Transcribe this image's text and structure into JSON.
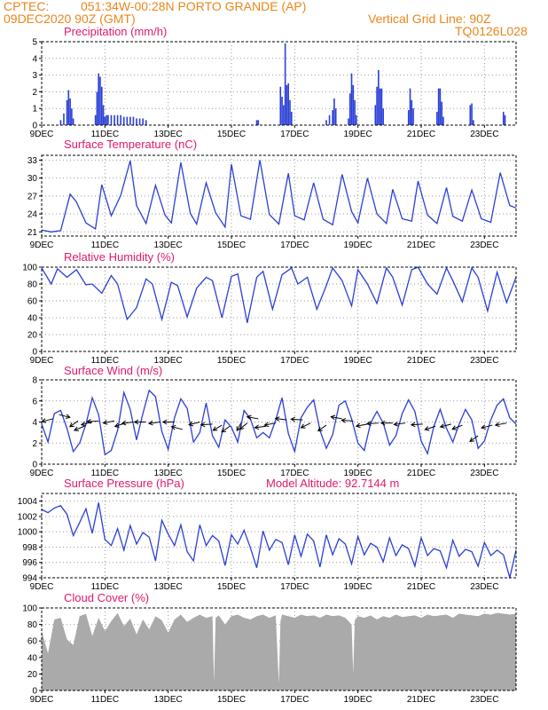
{
  "header": {
    "source": "CPTEC:",
    "location": "051:34W-00:28N  PORTO GRANDE (AP)",
    "run": "09DEC2020 90Z (GMT)",
    "grid_note": "Vertical Grid Line: 90Z",
    "code": "TQ0126L028"
  },
  "colors": {
    "header": "#e8861a",
    "title": "#e0196b",
    "series": "#2b3fd6",
    "cloud": "#aaaaaa"
  },
  "x_axis": {
    "start_day": 9,
    "end_day": 24,
    "ticks": [
      "9DEC",
      "11DEC",
      "13DEC",
      "15DEC",
      "17DEC",
      "19DEC",
      "21DEC",
      "23DEC"
    ]
  },
  "chart_data": [
    {
      "type": "bar",
      "title": "Precipitation (mm/h)",
      "ylim": [
        0,
        5
      ],
      "yticks": [
        0,
        1,
        2,
        3,
        4,
        5
      ],
      "x_unit": "day of December 2020",
      "points": [
        [
          9.6,
          0.3
        ],
        [
          9.7,
          0.7
        ],
        [
          9.8,
          1.5
        ],
        [
          9.85,
          2.1
        ],
        [
          9.9,
          1.6
        ],
        [
          9.95,
          1.0
        ],
        [
          10.0,
          0.4
        ],
        [
          10.7,
          0.6
        ],
        [
          10.75,
          2.0
        ],
        [
          10.8,
          3.1
        ],
        [
          10.85,
          2.9
        ],
        [
          10.9,
          2.3
        ],
        [
          10.95,
          1.2
        ],
        [
          11.0,
          0.5
        ],
        [
          11.05,
          0.6
        ],
        [
          11.1,
          0.6
        ],
        [
          11.2,
          0.6
        ],
        [
          11.3,
          0.6
        ],
        [
          11.4,
          0.6
        ],
        [
          11.5,
          0.6
        ],
        [
          11.6,
          0.5
        ],
        [
          11.7,
          0.5
        ],
        [
          11.8,
          0.5
        ],
        [
          11.9,
          0.5
        ],
        [
          12.0,
          0.4
        ],
        [
          12.1,
          0.4
        ],
        [
          12.2,
          0.4
        ],
        [
          12.3,
          0.3
        ],
        [
          15.8,
          0.3
        ],
        [
          15.85,
          0.3
        ],
        [
          16.55,
          2.3
        ],
        [
          16.6,
          1.7
        ],
        [
          16.65,
          1.2
        ],
        [
          16.7,
          4.9
        ],
        [
          16.75,
          2.4
        ],
        [
          16.8,
          2.5
        ],
        [
          16.85,
          1.5
        ],
        [
          16.9,
          0.8
        ],
        [
          18.0,
          0.3
        ],
        [
          18.1,
          0.6
        ],
        [
          18.2,
          0.9
        ],
        [
          18.25,
          1.6
        ],
        [
          18.3,
          1.0
        ],
        [
          18.7,
          0.4
        ],
        [
          18.75,
          1.9
        ],
        [
          18.8,
          3.1
        ],
        [
          18.85,
          2.4
        ],
        [
          18.9,
          1.5
        ],
        [
          18.95,
          0.6
        ],
        [
          19.55,
          1.2
        ],
        [
          19.6,
          2.3
        ],
        [
          19.65,
          3.3
        ],
        [
          19.7,
          2.2
        ],
        [
          19.75,
          2.2
        ],
        [
          19.8,
          1.0
        ],
        [
          20.6,
          0.9
        ],
        [
          20.65,
          2.2
        ],
        [
          20.7,
          1.5
        ],
        [
          20.75,
          1.0
        ],
        [
          21.5,
          0.8
        ],
        [
          21.55,
          2.2
        ],
        [
          21.6,
          2.2
        ],
        [
          21.65,
          1.4
        ],
        [
          21.7,
          0.5
        ],
        [
          22.55,
          1.2
        ],
        [
          22.6,
          1.3
        ],
        [
          22.65,
          0.3
        ],
        [
          23.6,
          0.8
        ],
        [
          23.65,
          0.6
        ]
      ]
    },
    {
      "type": "line",
      "title": "Surface Temperature (nC)",
      "ylim": [
        20.3,
        33.8
      ],
      "yticks": [
        21,
        24,
        27,
        30,
        33
      ],
      "x": [
        9.0,
        9.3,
        9.6,
        9.9,
        10.1,
        10.4,
        10.7,
        10.9,
        11.2,
        11.5,
        11.8,
        12.0,
        12.3,
        12.6,
        12.9,
        13.1,
        13.4,
        13.7,
        13.9,
        14.2,
        14.5,
        14.8,
        15.0,
        15.3,
        15.6,
        15.9,
        16.2,
        16.5,
        16.8,
        17.0,
        17.3,
        17.6,
        17.9,
        18.2,
        18.5,
        18.8,
        19.0,
        19.3,
        19.6,
        19.9,
        20.1,
        20.4,
        20.7,
        20.9,
        21.2,
        21.5,
        21.8,
        22.0,
        22.3,
        22.6,
        22.9,
        23.2,
        23.5,
        23.8,
        24.0
      ],
      "values": [
        21.3,
        21.0,
        21.2,
        27.3,
        26.0,
        22.5,
        21.5,
        28.9,
        23.7,
        27.1,
        32.9,
        25.4,
        22.4,
        28.8,
        23.8,
        22.5,
        32.6,
        24.1,
        22.3,
        29.2,
        24.2,
        21.8,
        32.3,
        23.7,
        23.1,
        33.0,
        23.9,
        22.3,
        30.8,
        23.7,
        23.0,
        29.2,
        23.1,
        22.2,
        30.6,
        24.4,
        22.5,
        30.0,
        24.0,
        22.4,
        28.1,
        23.2,
        22.8,
        29.5,
        23.8,
        22.4,
        28.4,
        23.6,
        22.8,
        28.0,
        23.2,
        22.6,
        30.9,
        25.4,
        25.0
      ]
    },
    {
      "type": "line",
      "title": "Relative Humidity (%)",
      "ylim": [
        0,
        100
      ],
      "yticks": [
        0,
        20,
        40,
        60,
        80,
        100
      ],
      "x": [
        9.0,
        9.3,
        9.5,
        9.8,
        10.1,
        10.4,
        10.6,
        10.9,
        11.2,
        11.4,
        11.7,
        12.0,
        12.3,
        12.5,
        12.8,
        13.1,
        13.3,
        13.6,
        13.9,
        14.2,
        14.4,
        14.7,
        15.0,
        15.2,
        15.5,
        15.8,
        16.0,
        16.3,
        16.6,
        16.9,
        17.1,
        17.4,
        17.7,
        18.0,
        18.2,
        18.5,
        18.8,
        19.0,
        19.3,
        19.6,
        19.9,
        20.1,
        20.4,
        20.7,
        20.9,
        21.2,
        21.5,
        21.8,
        22.0,
        22.3,
        22.6,
        22.8,
        23.1,
        23.4,
        23.7,
        24.0
      ],
      "values": [
        99,
        80,
        98,
        88,
        97,
        79,
        80,
        69,
        90,
        80,
        38,
        52,
        86,
        80,
        38,
        82,
        78,
        41,
        75,
        88,
        84,
        40,
        89,
        92,
        34,
        88,
        95,
        50,
        91,
        99,
        80,
        88,
        50,
        78,
        99,
        84,
        54,
        97,
        80,
        57,
        99,
        88,
        55,
        97,
        100,
        80,
        68,
        99,
        84,
        59,
        99,
        88,
        48,
        94,
        58,
        88
      ],
      "baseline": 0
    },
    {
      "type": "line",
      "title": "Surface Wind (m/s)",
      "ylim": [
        0,
        8
      ],
      "yticks": [
        0,
        2,
        4,
        6,
        8
      ],
      "x": [
        9.0,
        9.2,
        9.4,
        9.6,
        9.8,
        10.0,
        10.2,
        10.4,
        10.6,
        10.8,
        11.0,
        11.2,
        11.4,
        11.6,
        11.8,
        12.0,
        12.2,
        12.4,
        12.6,
        12.8,
        13.0,
        13.2,
        13.4,
        13.6,
        13.8,
        14.0,
        14.2,
        14.4,
        14.6,
        14.8,
        15.0,
        15.2,
        15.4,
        15.6,
        15.8,
        16.0,
        16.2,
        16.4,
        16.6,
        16.8,
        17.0,
        17.2,
        17.4,
        17.6,
        17.8,
        18.0,
        18.2,
        18.4,
        18.6,
        18.8,
        19.0,
        19.2,
        19.4,
        19.6,
        19.8,
        20.0,
        20.2,
        20.4,
        20.6,
        20.8,
        21.0,
        21.2,
        21.4,
        21.6,
        21.8,
        22.0,
        22.2,
        22.4,
        22.6,
        22.8,
        23.0,
        23.2,
        23.4,
        23.6,
        23.8,
        24.0
      ],
      "values": [
        3.8,
        2.1,
        4.8,
        5.1,
        3.4,
        1.2,
        2.0,
        3.8,
        6.3,
        4.7,
        0.9,
        1.3,
        3.2,
        6.8,
        5.2,
        2.3,
        4.8,
        7.0,
        6.4,
        3.1,
        1.4,
        4.4,
        6.2,
        5.3,
        2.1,
        3.0,
        5.8,
        2.7,
        1.6,
        4.2,
        3.5,
        2.1,
        5.1,
        4.3,
        2.5,
        3.0,
        2.5,
        4.2,
        6.3,
        2.9,
        1.2,
        4.4,
        5.4,
        6.1,
        3.2,
        1.5,
        2.8,
        5.6,
        6.0,
        4.3,
        2.0,
        1.3,
        3.9,
        5.0,
        3.9,
        1.8,
        2.7,
        4.8,
        6.1,
        5.0,
        2.2,
        1.0,
        3.6,
        5.2,
        3.4,
        2.1,
        3.8,
        5.2,
        4.2,
        1.5,
        2.2,
        4.2,
        5.6,
        6.2,
        4.4,
        3.8
      ],
      "vectors": [
        [
          9.35,
          4.3,
          70
        ],
        [
          9.55,
          4.7,
          290
        ],
        [
          10.15,
          4.1,
          45
        ],
        [
          10.35,
          3.6,
          60
        ],
        [
          10.6,
          4.0,
          70
        ],
        [
          10.8,
          4.1,
          85
        ],
        [
          11.3,
          4.1,
          75
        ],
        [
          11.65,
          3.9,
          65
        ],
        [
          11.9,
          4.0,
          80
        ],
        [
          12.3,
          4.0,
          90
        ],
        [
          12.75,
          4.0,
          80
        ],
        [
          13.2,
          4.0,
          90
        ],
        [
          13.45,
          3.3,
          110
        ],
        [
          14.0,
          4.0,
          70
        ],
        [
          14.4,
          3.8,
          85
        ],
        [
          14.7,
          3.7,
          50
        ],
        [
          14.95,
          3.6,
          45
        ],
        [
          15.3,
          3.9,
          20
        ],
        [
          15.5,
          3.9,
          40
        ],
        [
          15.85,
          4.3,
          105
        ],
        [
          16.1,
          3.6,
          80
        ],
        [
          16.4,
          3.9,
          75
        ],
        [
          16.75,
          4.2,
          100
        ],
        [
          17.25,
          4.2,
          95
        ],
        [
          17.5,
          3.9,
          55
        ],
        [
          18.0,
          3.7,
          45
        ],
        [
          18.5,
          4.3,
          105
        ],
        [
          18.85,
          4.1,
          95
        ],
        [
          19.3,
          3.8,
          75
        ],
        [
          19.65,
          3.9,
          85
        ],
        [
          20.1,
          3.9,
          90
        ],
        [
          20.5,
          3.9,
          80
        ],
        [
          21.05,
          3.8,
          85
        ],
        [
          21.45,
          3.6,
          65
        ],
        [
          21.95,
          3.8,
          70
        ],
        [
          22.3,
          3.7,
          60
        ],
        [
          22.8,
          2.7,
          45
        ],
        [
          23.25,
          3.7,
          70
        ],
        [
          23.7,
          3.9,
          75
        ]
      ]
    },
    {
      "type": "line",
      "title": "Surface Pressure (hPa)",
      "annotation": "Model Altitude: 92.7144 m",
      "ylim": [
        994,
        1005
      ],
      "yticks": [
        994,
        996,
        998,
        1000,
        1002,
        1004
      ],
      "x": [
        9.0,
        9.2,
        9.4,
        9.6,
        9.8,
        10.0,
        10.2,
        10.4,
        10.6,
        10.8,
        11.0,
        11.2,
        11.4,
        11.6,
        11.8,
        12.0,
        12.2,
        12.4,
        12.6,
        12.8,
        13.0,
        13.2,
        13.4,
        13.6,
        13.8,
        14.0,
        14.2,
        14.4,
        14.6,
        14.8,
        15.0,
        15.2,
        15.4,
        15.6,
        15.8,
        16.0,
        16.2,
        16.4,
        16.6,
        16.8,
        17.0,
        17.2,
        17.4,
        17.6,
        17.8,
        18.0,
        18.2,
        18.4,
        18.6,
        18.8,
        19.0,
        19.2,
        19.4,
        19.6,
        19.8,
        20.0,
        20.2,
        20.4,
        20.6,
        20.8,
        21.0,
        21.2,
        21.4,
        21.6,
        21.8,
        22.0,
        22.2,
        22.4,
        22.6,
        22.8,
        23.0,
        23.2,
        23.4,
        23.6,
        23.8,
        24.0
      ],
      "values": [
        1002.9,
        1002.5,
        1003.1,
        1003.4,
        1002.3,
        999.5,
        1001.2,
        1003.0,
        999.8,
        1003.8,
        999.0,
        998.2,
        1000.4,
        997.6,
        1000.8,
        998.4,
        999.9,
        999.3,
        996.2,
        1001.5,
        999.7,
        998.2,
        1000.9,
        997.4,
        996.2,
        1000.9,
        998.2,
        999.5,
        998.8,
        995.6,
        999.6,
        998.4,
        1000.2,
        997.9,
        995.3,
        1000.1,
        997.6,
        999.0,
        998.6,
        995.7,
        999.6,
        996.8,
        999.7,
        998.8,
        995.4,
        999.6,
        997.0,
        999.1,
        998.4,
        995.8,
        999.4,
        997.0,
        998.5,
        998.0,
        996.1,
        999.2,
        996.9,
        998.3,
        997.8,
        995.5,
        999.2,
        996.9,
        997.8,
        997.5,
        995.3,
        998.9,
        996.8,
        997.7,
        997.4,
        995.5,
        998.6,
        996.9,
        997.6,
        997.0,
        994.0,
        997.6
      ]
    },
    {
      "type": "area",
      "title": "Cloud Cover (%)",
      "ylim": [
        0,
        100
      ],
      "yticks": [
        0,
        20,
        40,
        60,
        80,
        100
      ],
      "x": [
        9.0,
        9.2,
        9.4,
        9.6,
        9.8,
        10.0,
        10.2,
        10.4,
        10.6,
        10.8,
        11.0,
        11.2,
        11.4,
        11.6,
        11.8,
        12.0,
        12.2,
        12.4,
        12.6,
        12.8,
        13.0,
        13.2,
        13.4,
        13.6,
        13.8,
        14.0,
        14.2,
        14.4,
        14.45,
        14.5,
        14.6,
        14.8,
        15.0,
        15.2,
        15.4,
        15.6,
        15.8,
        16.0,
        16.2,
        16.4,
        16.5,
        16.55,
        16.6,
        16.8,
        17.0,
        17.2,
        17.4,
        17.6,
        17.8,
        18.0,
        18.2,
        18.4,
        18.6,
        18.8,
        18.85,
        18.9,
        19.0,
        19.2,
        19.4,
        19.6,
        19.8,
        20.0,
        20.2,
        20.4,
        20.6,
        20.8,
        21.0,
        21.2,
        21.4,
        21.6,
        21.8,
        22.0,
        22.2,
        22.4,
        22.6,
        22.8,
        23.0,
        23.2,
        23.4,
        23.6,
        23.8,
        24.0
      ],
      "values": [
        72,
        45,
        86,
        88,
        62,
        55,
        90,
        93,
        66,
        88,
        72,
        84,
        94,
        78,
        87,
        68,
        86,
        74,
        90,
        85,
        70,
        86,
        92,
        83,
        88,
        92,
        88,
        90,
        10,
        88,
        91,
        80,
        90,
        92,
        88,
        86,
        90,
        92,
        88,
        91,
        8,
        84,
        92,
        90,
        88,
        92,
        90,
        91,
        88,
        92,
        90,
        91,
        88,
        80,
        20,
        85,
        90,
        88,
        91,
        86,
        90,
        88,
        92,
        89,
        90,
        91,
        88,
        92,
        90,
        91,
        92,
        88,
        93,
        92,
        91,
        90,
        93,
        92,
        94,
        93,
        92,
        93
      ]
    }
  ]
}
